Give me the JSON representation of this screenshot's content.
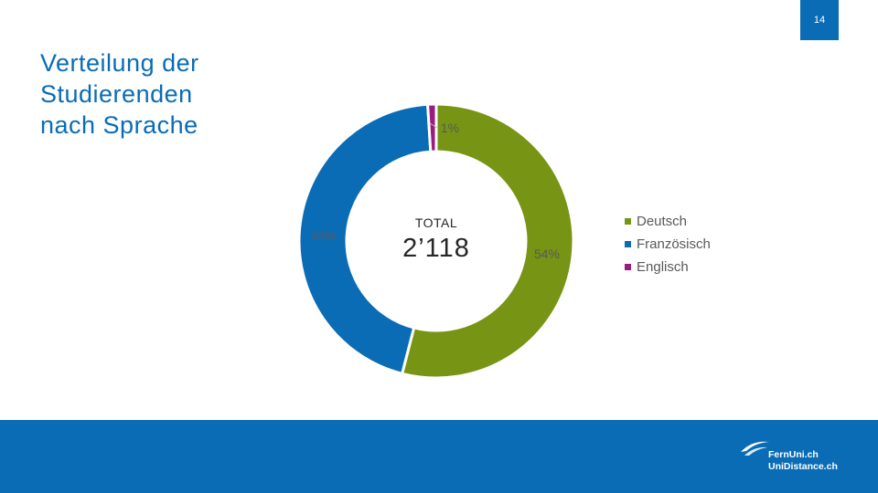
{
  "page": {
    "number": "14"
  },
  "title_lines": [
    "Verteilung der",
    "Studierenden",
    "nach Sprache"
  ],
  "center": {
    "label": "TOTAL",
    "value": "2’118"
  },
  "colors": {
    "Deutsch": "#779414",
    "Französisch": "#0a6cb5",
    "Englisch": "#9b1b7e",
    "brand": "#0a6cb5"
  },
  "chart_data": {
    "type": "pie",
    "donut": true,
    "categories": [
      "Deutsch",
      "Französisch",
      "Englisch"
    ],
    "values": [
      54,
      45,
      1
    ],
    "labels": [
      "54%",
      "45%",
      "1%"
    ],
    "total": "2’118",
    "legend": "right"
  },
  "logo": {
    "line1": "FernUni.ch",
    "line2": "UniDistance.ch"
  }
}
